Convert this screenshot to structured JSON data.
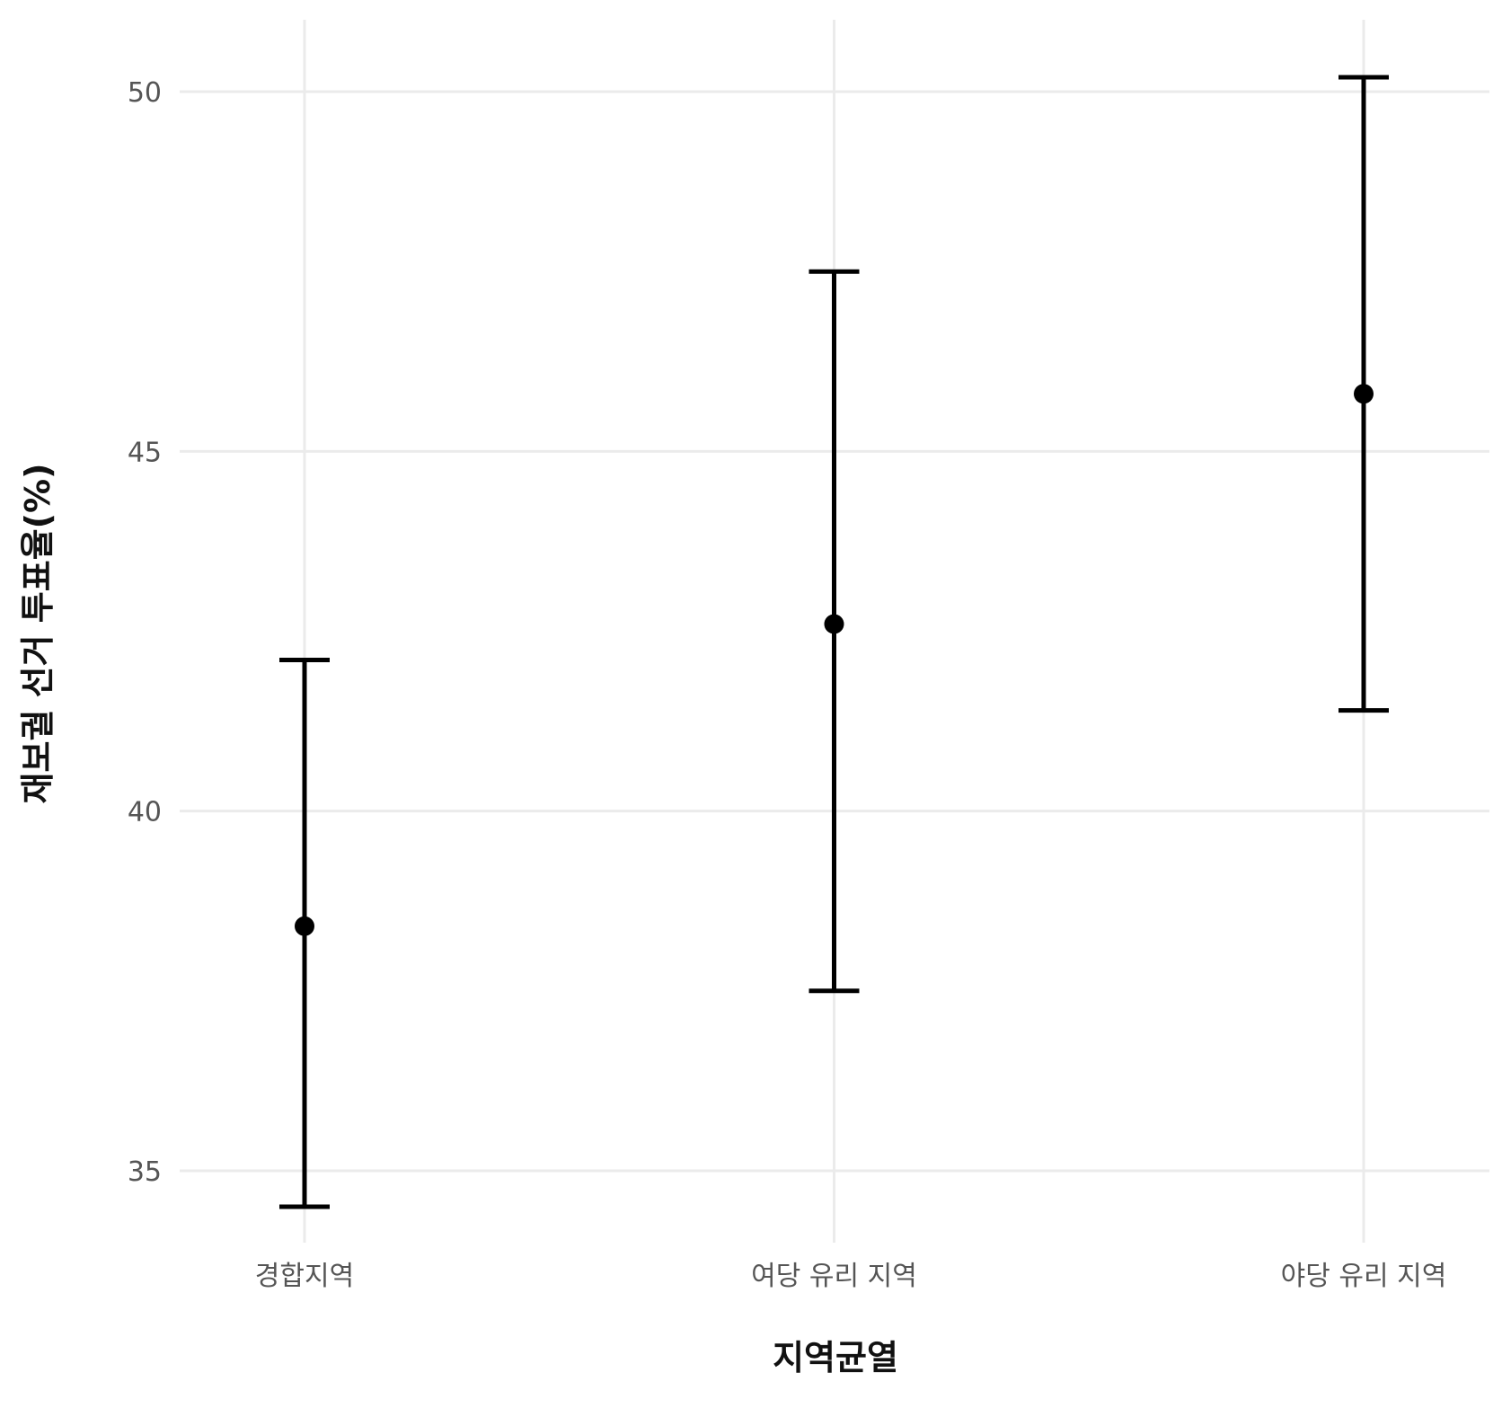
{
  "chart_data": {
    "type": "scatter",
    "title": "",
    "xlabel": "지역균열",
    "ylabel": "재보궐 선거 투표율(%)",
    "categories": [
      "경합지역",
      "여당 유리 지역",
      "야당 유리 지역"
    ],
    "series": [
      {
        "values": [
          38.4,
          42.6,
          45.8
        ],
        "lower": [
          34.5,
          37.5,
          41.4
        ],
        "upper": [
          42.1,
          47.5,
          50.2
        ]
      }
    ],
    "ylim": [
      34,
      51
    ],
    "yticks": [
      35,
      40,
      45,
      50
    ],
    "ytick_labels": [
      "35",
      "40",
      "45",
      "50"
    ],
    "grid": true,
    "legend": "none",
    "colors": {
      "mark": "#000000",
      "grid": "#ebebeb",
      "tick_text": "#555555"
    }
  }
}
